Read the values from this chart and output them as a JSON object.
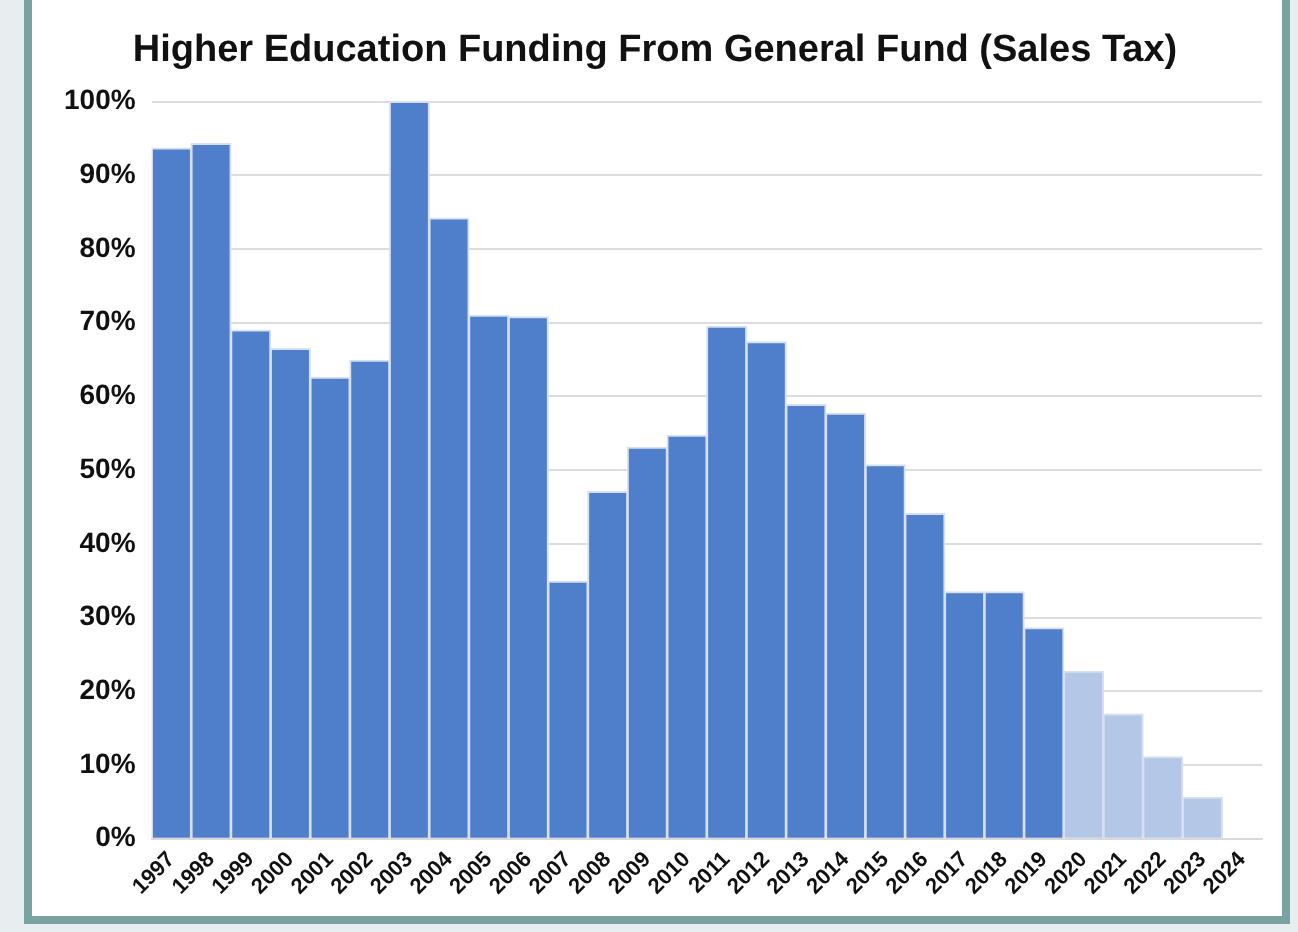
{
  "chart_data": {
    "type": "bar",
    "title": "Higher Education Funding From General Fund (Sales Tax)",
    "categories": [
      "1997",
      "1998",
      "1999",
      "2000",
      "2001",
      "2002",
      "2003",
      "2004",
      "2005",
      "2006",
      "2007",
      "2008",
      "2009",
      "2010",
      "2011",
      "2012",
      "2013",
      "2014",
      "2015",
      "2016",
      "2017",
      "2018",
      "2019",
      "2020",
      "2021",
      "2022",
      "2023",
      "2024"
    ],
    "values": [
      93.7,
      94.3,
      69,
      66.5,
      62.6,
      64.9,
      100,
      84.2,
      71,
      70.8,
      34.9,
      47.1,
      53.1,
      54.7,
      69.5,
      67.4,
      58.9,
      57.7,
      50.7,
      44.1,
      33.5,
      33.5,
      28.6,
      22.7,
      16.9,
      11.1,
      5.6,
      0
    ],
    "colors": [
      "#4f7ecb",
      "#4f7ecb",
      "#4f7ecb",
      "#4f7ecb",
      "#4f7ecb",
      "#4f7ecb",
      "#4f7ecb",
      "#4f7ecb",
      "#4f7ecb",
      "#4f7ecb",
      "#4f7ecb",
      "#4f7ecb",
      "#4f7ecb",
      "#4f7ecb",
      "#4f7ecb",
      "#4f7ecb",
      "#4f7ecb",
      "#4f7ecb",
      "#4f7ecb",
      "#4f7ecb",
      "#4f7ecb",
      "#4f7ecb",
      "#4f7ecb",
      "#b4c7e7",
      "#b4c7e7",
      "#b4c7e7",
      "#b4c7e7",
      "#b4c7e7"
    ],
    "ylim": [
      0,
      100
    ],
    "yticks": [
      {
        "value": 0,
        "label": "0%"
      },
      {
        "value": 10,
        "label": "10%"
      },
      {
        "value": 20,
        "label": "20%"
      },
      {
        "value": 30,
        "label": "30%"
      },
      {
        "value": 40,
        "label": "40%"
      },
      {
        "value": 50,
        "label": "50%"
      },
      {
        "value": 60,
        "label": "60%"
      },
      {
        "value": 70,
        "label": "70%"
      },
      {
        "value": 80,
        "label": "80%"
      },
      {
        "value": 90,
        "label": "90%"
      },
      {
        "value": 100,
        "label": "100%"
      }
    ],
    "grid": "y",
    "legend": false
  }
}
